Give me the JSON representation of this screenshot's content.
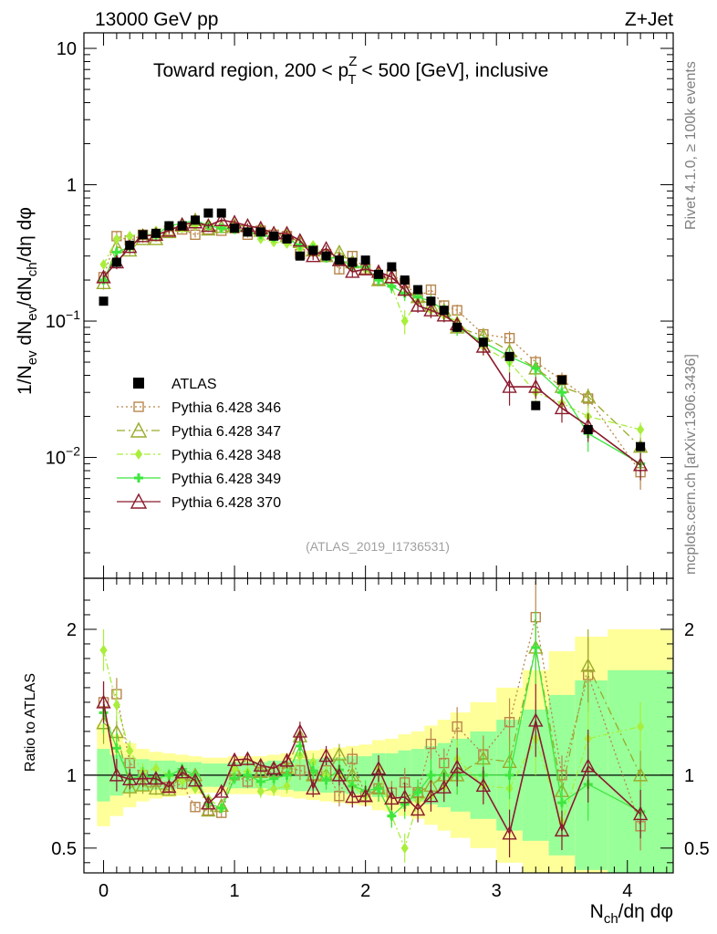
{
  "header": {
    "left": "13000 GeV pp",
    "right": "Z+Jet"
  },
  "side_texts": {
    "top": "Rivet 4.1.0, ≥ 100k events",
    "bottom": "mcplots.cern.ch [arXiv:1306.3436]"
  },
  "reference": "(ATLAS_2019_I1736531)",
  "chart_data": {
    "type": "line",
    "title": "Toward region, 200 < pT^Z < 500 [GeV], inclusive",
    "title_parts": {
      "prefix": "Toward region, 200 < p",
      "sup": "Z",
      "sub": "T",
      "suffix": " < 500 [GeV], inclusive"
    },
    "xlabel": "Nch/dη dφ",
    "xlabel_parts": {
      "n": "N",
      "sub": "ch",
      "rest": "/dη dφ"
    },
    "ylabel": "1/Nev dNev/dNch/dη dφ",
    "ratio_ylabel": "Ratio to ATLAS",
    "xlim": [
      -0.15,
      4.35
    ],
    "ylim": [
      0.0013,
      13
    ],
    "yscale": "log",
    "ratio_ylim": [
      0.33,
      2.35
    ],
    "x_ticks": [
      0,
      1,
      2,
      3,
      4
    ],
    "x_tick_labels": [
      "0",
      "1",
      "2",
      "3",
      "4"
    ],
    "y_ticks": [
      {
        "value": 10,
        "base": "10",
        "exp": ""
      },
      {
        "value": 1,
        "base": "1",
        "exp": ""
      },
      {
        "value": 0.1,
        "base": "10",
        "exp": "−1"
      },
      {
        "value": 0.01,
        "base": "10",
        "exp": "−2"
      }
    ],
    "ratio_ticks": [
      0.5,
      1,
      2
    ],
    "ratio_tick_labels": [
      "0.5",
      "1",
      "2"
    ],
    "x": [
      0.0,
      0.1,
      0.2,
      0.3,
      0.4,
      0.5,
      0.6,
      0.7,
      0.8,
      0.9,
      1.0,
      1.1,
      1.2,
      1.3,
      1.4,
      1.5,
      1.6,
      1.7,
      1.8,
      1.9,
      2.0,
      2.1,
      2.2,
      2.3,
      2.4,
      2.5,
      2.6,
      2.7,
      2.9,
      3.1,
      3.3,
      3.5,
      3.7,
      4.1
    ],
    "data": {
      "name": "ATLAS",
      "values": [
        0.14,
        0.27,
        0.36,
        0.43,
        0.44,
        0.5,
        0.5,
        0.55,
        0.62,
        0.62,
        0.48,
        0.45,
        0.45,
        0.42,
        0.4,
        0.3,
        0.33,
        0.3,
        0.28,
        0.27,
        0.28,
        0.22,
        0.25,
        0.2,
        0.17,
        0.14,
        0.12,
        0.09,
        0.07,
        0.055,
        0.024,
        0.037,
        0.016,
        0.012
      ]
    },
    "band_edges": [
      -0.05,
      0.05,
      0.15,
      0.25,
      0.35,
      0.45,
      0.55,
      0.65,
      0.75,
      0.85,
      0.95,
      1.05,
      1.15,
      1.25,
      1.35,
      1.45,
      1.55,
      1.65,
      1.75,
      1.85,
      1.95,
      2.05,
      2.15,
      2.25,
      2.35,
      2.45,
      2.55,
      2.65,
      2.8,
      3.0,
      3.2,
      3.4,
      3.6,
      3.85,
      4.35
    ],
    "band_green": [
      0.18,
      0.14,
      0.12,
      0.11,
      0.1,
      0.1,
      0.09,
      0.09,
      0.08,
      0.08,
      0.09,
      0.09,
      0.09,
      0.1,
      0.1,
      0.11,
      0.11,
      0.12,
      0.12,
      0.13,
      0.13,
      0.15,
      0.15,
      0.17,
      0.18,
      0.2,
      0.22,
      0.25,
      0.3,
      0.38,
      0.45,
      0.55,
      0.65,
      0.72
    ],
    "band_yellow": [
      0.35,
      0.28,
      0.22,
      0.18,
      0.16,
      0.15,
      0.14,
      0.13,
      0.12,
      0.12,
      0.13,
      0.13,
      0.13,
      0.14,
      0.15,
      0.16,
      0.17,
      0.18,
      0.19,
      0.2,
      0.21,
      0.24,
      0.25,
      0.28,
      0.3,
      0.34,
      0.38,
      0.43,
      0.5,
      0.6,
      0.72,
      0.85,
      0.95,
      1.0
    ],
    "series": [
      {
        "name": "Pythia 6.428 346",
        "color": "#b8864b",
        "dash": "2,3",
        "marker": "square",
        "values": [
          0.21,
          0.42,
          0.39,
          0.43,
          0.42,
          0.46,
          0.47,
          0.43,
          0.47,
          0.46,
          0.48,
          0.43,
          0.46,
          0.43,
          0.42,
          0.31,
          0.33,
          0.31,
          0.24,
          0.3,
          0.24,
          0.2,
          0.22,
          0.19,
          0.15,
          0.17,
          0.13,
          0.12,
          0.08,
          0.075,
          0.05,
          0.037,
          0.027,
          0.0078
        ],
        "errors": [
          0.02,
          0.03,
          0.025,
          0.025,
          0.02,
          0.02,
          0.02,
          0.02,
          0.02,
          0.02,
          0.02,
          0.02,
          0.02,
          0.02,
          0.02,
          0.02,
          0.02,
          0.02,
          0.02,
          0.02,
          0.02,
          0.02,
          0.02,
          0.02,
          0.015,
          0.015,
          0.012,
          0.012,
          0.009,
          0.009,
          0.006,
          0.005,
          0.004,
          0.002
        ]
      },
      {
        "name": "Pythia 6.428 347",
        "color": "#9aab2a",
        "dash": "9,4,2,4",
        "marker": "triangle",
        "values": [
          0.19,
          0.35,
          0.33,
          0.4,
          0.4,
          0.45,
          0.5,
          0.55,
          0.47,
          0.49,
          0.5,
          0.5,
          0.46,
          0.44,
          0.42,
          0.38,
          0.33,
          0.3,
          0.32,
          0.27,
          0.24,
          0.2,
          0.21,
          0.17,
          0.15,
          0.13,
          0.12,
          0.09,
          0.078,
          0.06,
          0.045,
          0.033,
          0.028,
          0.012
        ],
        "errors": [
          0.02,
          0.03,
          0.025,
          0.025,
          0.02,
          0.02,
          0.02,
          0.02,
          0.02,
          0.02,
          0.02,
          0.02,
          0.02,
          0.02,
          0.02,
          0.02,
          0.02,
          0.02,
          0.02,
          0.02,
          0.02,
          0.02,
          0.02,
          0.02,
          0.015,
          0.015,
          0.012,
          0.012,
          0.009,
          0.009,
          0.006,
          0.005,
          0.004,
          0.002
        ]
      },
      {
        "name": "Pythia 6.428 348",
        "color": "#a9ee3c",
        "dash": "7,3,2,3",
        "marker": "diamond",
        "values": [
          0.26,
          0.4,
          0.42,
          0.44,
          0.46,
          0.5,
          0.48,
          0.5,
          0.52,
          0.48,
          0.5,
          0.46,
          0.4,
          0.38,
          0.37,
          0.34,
          0.36,
          0.3,
          0.28,
          0.25,
          0.24,
          0.23,
          0.18,
          0.1,
          0.14,
          0.12,
          0.11,
          0.1,
          0.065,
          0.05,
          0.03,
          0.025,
          0.02,
          0.016
        ],
        "errors": [
          0.02,
          0.03,
          0.025,
          0.025,
          0.02,
          0.02,
          0.02,
          0.02,
          0.02,
          0.02,
          0.02,
          0.02,
          0.02,
          0.02,
          0.02,
          0.02,
          0.02,
          0.02,
          0.02,
          0.02,
          0.02,
          0.02,
          0.02,
          0.02,
          0.015,
          0.015,
          0.012,
          0.012,
          0.009,
          0.009,
          0.006,
          0.005,
          0.004,
          0.002
        ]
      },
      {
        "name": "Pythia 6.428 349",
        "color": "#3ee63e",
        "dash": "",
        "marker": "cross",
        "values": [
          0.2,
          0.32,
          0.35,
          0.43,
          0.43,
          0.5,
          0.52,
          0.55,
          0.5,
          0.48,
          0.47,
          0.45,
          0.43,
          0.41,
          0.4,
          0.36,
          0.34,
          0.29,
          0.29,
          0.25,
          0.25,
          0.2,
          0.18,
          0.16,
          0.15,
          0.14,
          0.12,
          0.09,
          0.07,
          0.055,
          0.045,
          0.03,
          0.015,
          0.009
        ],
        "errors": [
          0.02,
          0.03,
          0.025,
          0.025,
          0.02,
          0.02,
          0.02,
          0.02,
          0.02,
          0.02,
          0.02,
          0.02,
          0.02,
          0.02,
          0.02,
          0.02,
          0.02,
          0.02,
          0.02,
          0.02,
          0.02,
          0.02,
          0.02,
          0.02,
          0.015,
          0.015,
          0.012,
          0.012,
          0.009,
          0.009,
          0.006,
          0.005,
          0.004,
          0.002
        ]
      },
      {
        "name": "Pythia 6.428 370",
        "color": "#8b1a2e",
        "dash": "",
        "marker": "triangle",
        "values": [
          0.21,
          0.27,
          0.35,
          0.42,
          0.43,
          0.46,
          0.51,
          0.53,
          0.5,
          0.55,
          0.53,
          0.5,
          0.48,
          0.44,
          0.44,
          0.39,
          0.3,
          0.34,
          0.28,
          0.23,
          0.24,
          0.23,
          0.21,
          0.17,
          0.13,
          0.12,
          0.11,
          0.095,
          0.065,
          0.033,
          0.033,
          0.023,
          0.017,
          0.0088
        ],
        "errors": [
          0.02,
          0.03,
          0.025,
          0.025,
          0.02,
          0.02,
          0.02,
          0.02,
          0.02,
          0.02,
          0.02,
          0.02,
          0.02,
          0.02,
          0.02,
          0.02,
          0.02,
          0.02,
          0.02,
          0.02,
          0.02,
          0.02,
          0.02,
          0.02,
          0.015,
          0.015,
          0.012,
          0.012,
          0.009,
          0.009,
          0.006,
          0.005,
          0.004,
          0.002
        ]
      }
    ]
  }
}
